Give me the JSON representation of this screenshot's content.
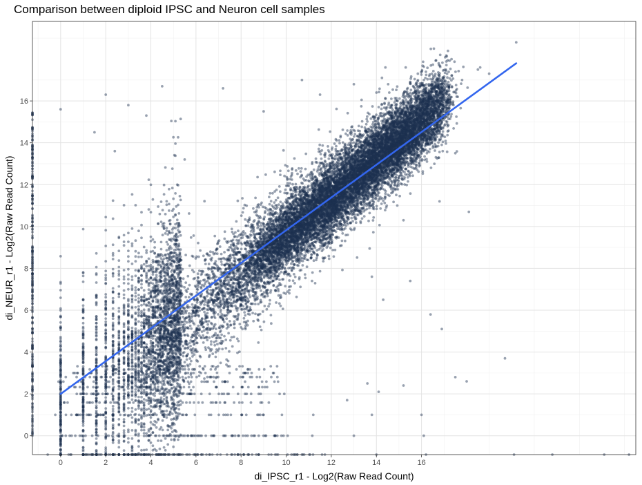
{
  "chart_data": {
    "type": "scatter",
    "title": "Comparison between diploid IPSC and Neuron cell samples",
    "xlabel": "di_IPSC_r1 - Log2(Raw Read Count)",
    "ylabel": "di_NEUR_r1 - Log2(Raw Read Count)",
    "xlim": [
      -1.25,
      25.5
    ],
    "ylim": [
      -0.9,
      19.8
    ],
    "x_ticks": [
      0,
      2,
      4,
      6,
      8,
      10,
      12,
      14,
      16
    ],
    "y_ticks": [
      0,
      2,
      4,
      6,
      8,
      10,
      12,
      14,
      16
    ],
    "x_tick_labels": [
      "0",
      "2",
      "4",
      "6",
      "8",
      "10",
      "12",
      "14",
      "16"
    ],
    "y_tick_labels": [
      "0",
      "2",
      "4",
      "6",
      "8",
      "10",
      "12",
      "14",
      "16"
    ],
    "grid": true,
    "point_color": "#1d3050",
    "point_alpha": 0.45,
    "fit_line": {
      "color": "#3366ee",
      "x": [
        0,
        20.2
      ],
      "y": [
        2.0,
        17.8
      ]
    },
    "series": [
      {
        "description_points": [
          [
            20.2,
            18.8
          ],
          [
            18.5,
            17.5
          ],
          [
            17.8,
            17.0
          ],
          [
            15.3,
            17.6
          ],
          [
            16.5,
            16.7
          ],
          [
            14.4,
            17.6
          ],
          [
            7.2,
            16.6
          ],
          [
            13.0,
            16.8
          ],
          [
            10.7,
            17.0
          ],
          [
            4.5,
            16.7
          ],
          [
            2.0,
            16.3
          ],
          [
            3.0,
            15.8
          ],
          [
            0.0,
            15.6
          ],
          [
            18.6,
            17.6
          ],
          [
            19.0,
            17.3
          ],
          [
            16.2,
            16.5
          ],
          [
            14.0,
            16.4
          ],
          [
            11.5,
            16.3
          ],
          [
            3.8,
            15.3
          ],
          [
            9.0,
            15.5
          ],
          [
            1.5,
            14.5
          ],
          [
            2.4,
            13.6
          ],
          [
            5.5,
            13.2
          ],
          [
            17.5,
            13.5
          ],
          [
            16.8,
            11.2
          ],
          [
            15.2,
            10.3
          ],
          [
            18.1,
            10.7
          ],
          [
            13.8,
            7.6
          ],
          [
            14.3,
            6.5
          ],
          [
            15.5,
            7.4
          ],
          [
            16.4,
            5.8
          ],
          [
            16.9,
            5.1
          ],
          [
            19.7,
            3.7
          ],
          [
            17.5,
            2.8
          ],
          [
            18.0,
            2.6
          ],
          [
            15.2,
            2.4
          ],
          [
            14.1,
            2.1
          ],
          [
            13.6,
            2.5
          ],
          [
            12.7,
            1.7
          ],
          [
            11.2,
            1.0
          ],
          [
            13.8,
            1.0
          ],
          [
            16.0,
            1.0
          ],
          [
            16.1,
            0.0
          ],
          [
            16.2,
            -0.9
          ],
          [
            13.0,
            0.0
          ],
          [
            10.8,
            -0.9
          ],
          [
            14.0,
            -0.9
          ],
          [
            21.8,
            -0.9
          ],
          [
            24.1,
            -0.9
          ],
          [
            25.2,
            -0.9
          ],
          [
            20.1,
            -0.9
          ]
        ]
      }
    ]
  }
}
